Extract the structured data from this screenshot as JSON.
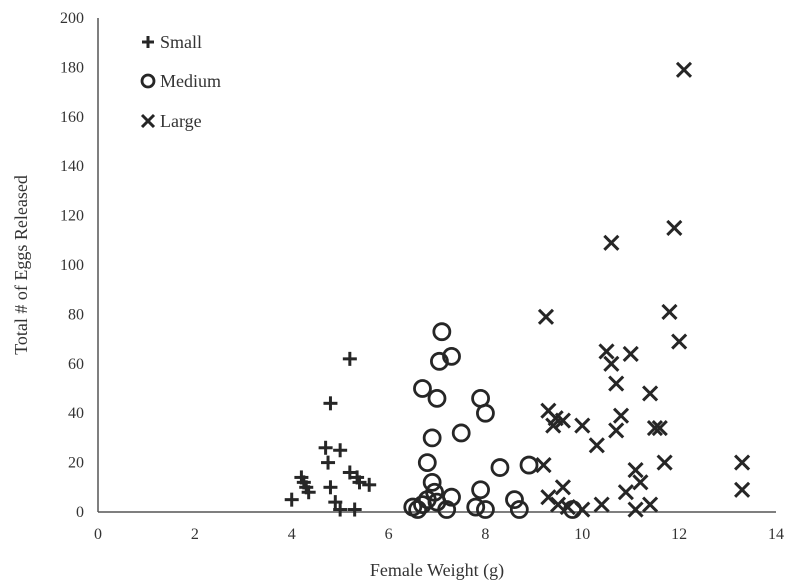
{
  "chart_data": {
    "type": "scatter",
    "title": "",
    "xlabel": "Female Weight (g)",
    "ylabel": "Total # of Eggs Released",
    "xlim": [
      0,
      14
    ],
    "ylim": [
      0,
      200
    ],
    "xticks": [
      0,
      2,
      4,
      6,
      8,
      10,
      12,
      14
    ],
    "yticks": [
      0,
      20,
      40,
      60,
      80,
      100,
      120,
      140,
      160,
      180,
      200
    ],
    "grid": false,
    "legend_position": "top-left",
    "series": [
      {
        "name": "Small",
        "marker": "plus",
        "points": [
          [
            4.0,
            5
          ],
          [
            4.2,
            14
          ],
          [
            4.25,
            12
          ],
          [
            4.3,
            10
          ],
          [
            4.35,
            8
          ],
          [
            4.7,
            26
          ],
          [
            4.75,
            20
          ],
          [
            4.8,
            44
          ],
          [
            4.8,
            10
          ],
          [
            4.9,
            4
          ],
          [
            5.0,
            25
          ],
          [
            5.0,
            1
          ],
          [
            5.2,
            62
          ],
          [
            5.2,
            16
          ],
          [
            5.3,
            1
          ],
          [
            5.35,
            14
          ],
          [
            5.4,
            12
          ],
          [
            5.6,
            11
          ]
        ]
      },
      {
        "name": "Medium",
        "marker": "circle",
        "points": [
          [
            6.5,
            2
          ],
          [
            6.6,
            1
          ],
          [
            6.7,
            3
          ],
          [
            6.7,
            50
          ],
          [
            6.8,
            5
          ],
          [
            6.8,
            20
          ],
          [
            6.9,
            30
          ],
          [
            6.9,
            12
          ],
          [
            6.95,
            8
          ],
          [
            7.0,
            46
          ],
          [
            7.0,
            4
          ],
          [
            7.05,
            61
          ],
          [
            7.1,
            73
          ],
          [
            7.2,
            1
          ],
          [
            7.3,
            63
          ],
          [
            7.3,
            6
          ],
          [
            7.5,
            32
          ],
          [
            7.8,
            2
          ],
          [
            7.9,
            46
          ],
          [
            7.9,
            9
          ],
          [
            8.0,
            40
          ],
          [
            8.0,
            1
          ],
          [
            8.3,
            18
          ],
          [
            8.6,
            5
          ],
          [
            8.7,
            1
          ],
          [
            8.9,
            19
          ],
          [
            9.8,
            1
          ]
        ]
      },
      {
        "name": "Large",
        "marker": "x",
        "points": [
          [
            9.2,
            19
          ],
          [
            9.25,
            79
          ],
          [
            9.3,
            41
          ],
          [
            9.3,
            6
          ],
          [
            9.4,
            35
          ],
          [
            9.45,
            38
          ],
          [
            9.5,
            3
          ],
          [
            9.6,
            10
          ],
          [
            9.6,
            37
          ],
          [
            9.7,
            2
          ],
          [
            10.0,
            1
          ],
          [
            10.0,
            35
          ],
          [
            10.3,
            27
          ],
          [
            10.4,
            3
          ],
          [
            10.5,
            65
          ],
          [
            10.6,
            109
          ],
          [
            10.6,
            60
          ],
          [
            10.7,
            52
          ],
          [
            10.7,
            33
          ],
          [
            10.8,
            39
          ],
          [
            10.9,
            8
          ],
          [
            11.0,
            64
          ],
          [
            11.1,
            17
          ],
          [
            11.1,
            1
          ],
          [
            11.2,
            12
          ],
          [
            11.4,
            48
          ],
          [
            11.4,
            3
          ],
          [
            11.5,
            34
          ],
          [
            11.6,
            34
          ],
          [
            11.7,
            20
          ],
          [
            11.8,
            81
          ],
          [
            11.9,
            115
          ],
          [
            12.0,
            69
          ],
          [
            12.1,
            179
          ],
          [
            13.3,
            9
          ],
          [
            13.3,
            20
          ]
        ]
      }
    ]
  }
}
